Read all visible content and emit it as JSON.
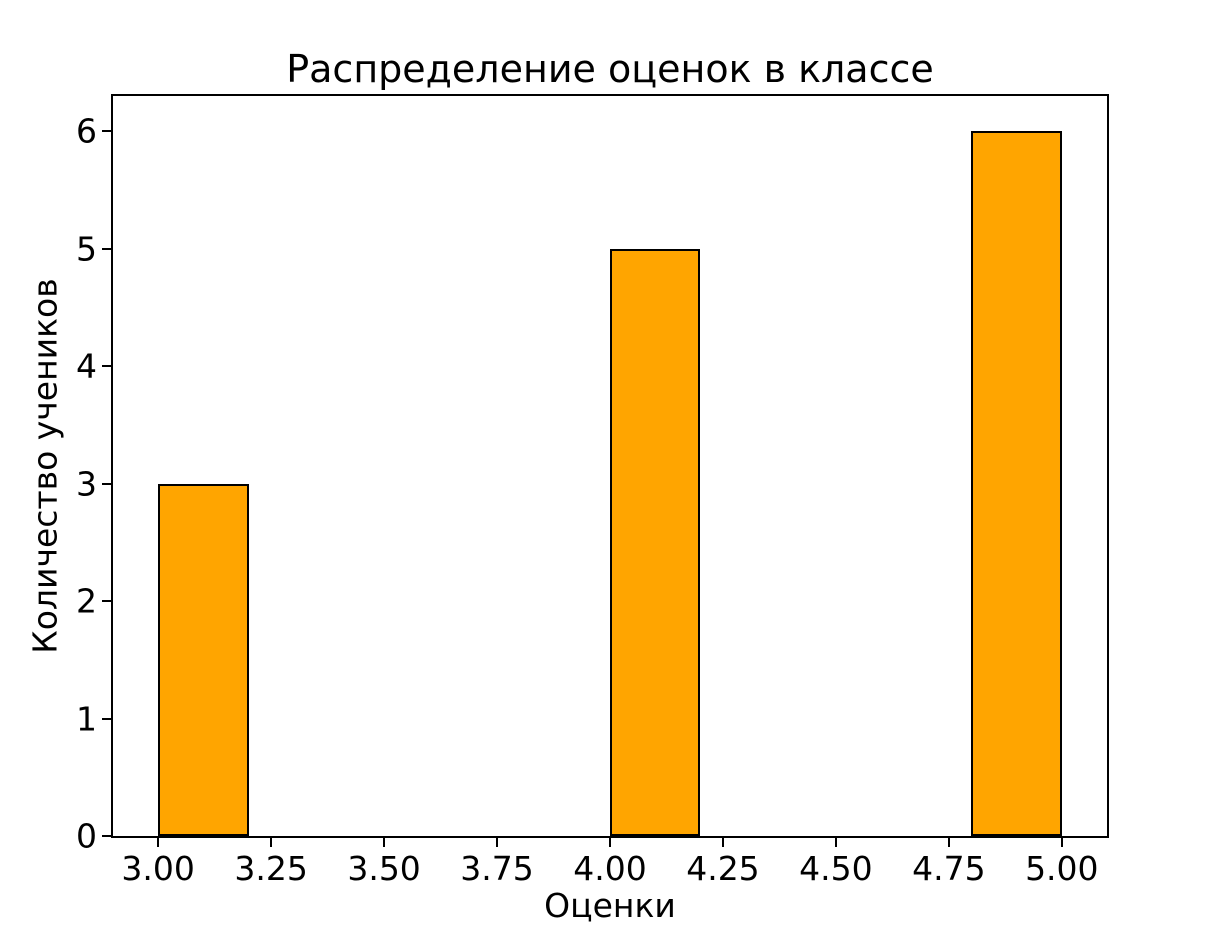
{
  "figure": {
    "background": "#ffffff",
    "text_color": "#000000"
  },
  "chart_data": {
    "type": "bar",
    "title": "Распределение оценок в классе",
    "xlabel": "Оценки",
    "ylabel": "Количество учеников",
    "bars": [
      {
        "x_start": 3.0,
        "x_end": 3.2,
        "value": 3
      },
      {
        "x_start": 4.0,
        "x_end": 4.2,
        "value": 5
      },
      {
        "x_start": 4.8,
        "x_end": 5.0,
        "value": 6
      }
    ],
    "x_ticks": [
      {
        "value": 3.0,
        "label": "3.00"
      },
      {
        "value": 3.25,
        "label": "3.25"
      },
      {
        "value": 3.5,
        "label": "3.50"
      },
      {
        "value": 3.75,
        "label": "3.75"
      },
      {
        "value": 4.0,
        "label": "4.00"
      },
      {
        "value": 4.25,
        "label": "4.25"
      },
      {
        "value": 4.5,
        "label": "4.50"
      },
      {
        "value": 4.75,
        "label": "4.75"
      },
      {
        "value": 5.0,
        "label": "5.00"
      }
    ],
    "y_ticks": [
      {
        "value": 0,
        "label": "0"
      },
      {
        "value": 1,
        "label": "1"
      },
      {
        "value": 2,
        "label": "2"
      },
      {
        "value": 3,
        "label": "3"
      },
      {
        "value": 4,
        "label": "4"
      },
      {
        "value": 5,
        "label": "5"
      },
      {
        "value": 6,
        "label": "6"
      }
    ],
    "xlim": [
      2.9,
      5.1
    ],
    "ylim": [
      0,
      6.3
    ],
    "bar_color": "#FFA500",
    "bar_edge_color": "#000000",
    "grid": false,
    "legend": null
  }
}
